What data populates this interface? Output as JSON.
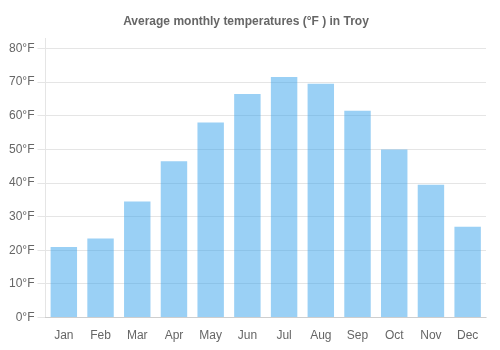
{
  "chart_data": {
    "type": "bar",
    "title": "Average monthly temperatures (°F ) in Troy",
    "categories": [
      "Jan",
      "Feb",
      "Mar",
      "Apr",
      "May",
      "Jun",
      "Jul",
      "Aug",
      "Sep",
      "Oct",
      "Nov",
      "Dec"
    ],
    "values": [
      21,
      23.5,
      34.5,
      46.5,
      58,
      66.5,
      71.5,
      69.5,
      61.5,
      50,
      39.5,
      27
    ],
    "ylim": [
      0,
      83
    ],
    "yticks": [
      {
        "value": 0,
        "label": "0°F"
      },
      {
        "value": 10,
        "label": "10°F"
      },
      {
        "value": 20,
        "label": "20°F"
      },
      {
        "value": 30,
        "label": "30°F"
      },
      {
        "value": 40,
        "label": "40°F"
      },
      {
        "value": 50,
        "label": "50°F"
      },
      {
        "value": 60,
        "label": "60°F"
      },
      {
        "value": 70,
        "label": "70°F"
      },
      {
        "value": 80,
        "label": "80°F"
      }
    ],
    "grid": true
  }
}
